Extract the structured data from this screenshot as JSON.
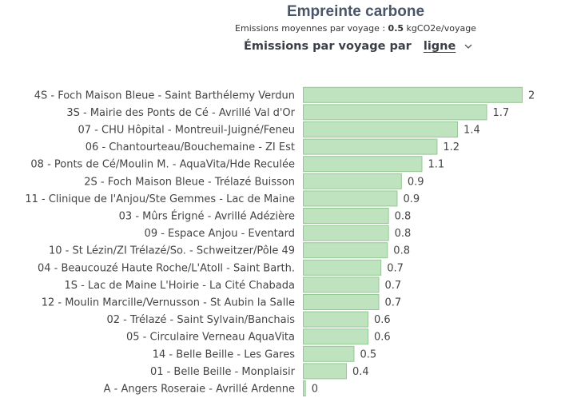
{
  "header": {
    "title": "Empreinte carbone",
    "subtitle_prefix": "Emissions moyennes par voyage :",
    "subtitle_value": "0.5",
    "subtitle_unit": "kgCO2e/voyage",
    "selector_label": "Émissions par voyage par",
    "selector_value": "ligne",
    "selector_icon": "chevron-down-icon"
  },
  "colors": {
    "bar_fill": "#bfe3bf",
    "bar_stroke": "#93c993",
    "title": "#4a5568"
  },
  "chart_data": {
    "type": "bar",
    "orientation": "horizontal",
    "title": "Empreinte carbone",
    "xlabel": "",
    "ylabel": "",
    "xlim": [
      0,
      2
    ],
    "grid": false,
    "categories": [
      "4S - Foch Maison Bleue - Saint Barthélemy Verdun",
      "3S - Mairie des Ponts de Cé - Avrillé Val d'Or",
      "07 - CHU Hôpital - Montreuil-Juigné/Feneu",
      "06 - Chantourteau/Bouchemaine - ZI Est",
      "08 - Ponts de Cé/Moulin M. - AquaVita/Hde Reculée",
      "2S - Foch Maison Bleue - Trélazé Buisson",
      "11 - Clinique de l'Anjou/Ste Gemmes - Lac de Maine",
      "03 - Mûrs Érigné - Avrillé Adézière",
      "09 - Espace Anjou - Eventard",
      "10 - St Lézin/ZI Trélazé/So. - Schweitzer/Pôle 49",
      "04 - Beaucouzé Haute Roche/L'Atoll - Saint Barth.",
      "1S - Lac de Maine L'Hoirie - La Cité Chabada",
      "12 - Moulin Marcille/Vernusson - St Aubin la Salle",
      "02 - Trélazé - Saint Sylvain/Banchais",
      "05 - Circulaire Verneau AquaVita",
      "14 - Belle Beille - Les Gares",
      "01 - Belle Beille - Monplaisir",
      "A - Angers Roseraie - Avrillé Ardenne"
    ],
    "values": [
      2.03,
      1.7,
      1.43,
      1.24,
      1.1,
      0.91,
      0.87,
      0.79,
      0.79,
      0.78,
      0.72,
      0.7,
      0.7,
      0.6,
      0.6,
      0.47,
      0.4,
      0.02
    ],
    "value_labels": [
      "2",
      "1.7",
      "1.4",
      "1.2",
      "1.1",
      "0.9",
      "0.9",
      "0.8",
      "0.8",
      "0.8",
      "0.7",
      "0.7",
      "0.7",
      "0.6",
      "0.6",
      "0.5",
      "0.4",
      "0"
    ]
  }
}
